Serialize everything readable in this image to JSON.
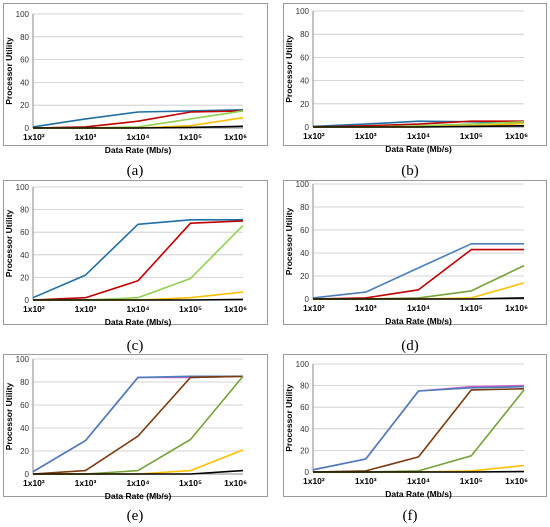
{
  "chart_data": [
    {
      "type": "line",
      "caption": "(a)",
      "xlabel": "Data Rate (Mb/s)",
      "ylabel": "Processor Utility",
      "x_tick_labels": [
        "1x10²",
        "1x10³",
        "1x10⁴",
        "1x10⁵",
        "1x10⁶"
      ],
      "y_ticks": [
        0,
        20,
        40,
        60,
        80,
        100
      ],
      "ylim": [
        0,
        100
      ],
      "xscale": "log",
      "grid": true,
      "series": [
        {
          "color": "#1f6fa5",
          "values": [
            1,
            8,
            14,
            15,
            16
          ]
        },
        {
          "color": "#c00000",
          "values": [
            0,
            1,
            6,
            14,
            15
          ]
        },
        {
          "color": "#92d050",
          "values": [
            0,
            0,
            1,
            8,
            15
          ]
        },
        {
          "color": "#ffc000",
          "values": [
            0,
            0,
            0,
            2,
            9
          ]
        },
        {
          "color": "#000000",
          "values": [
            0,
            0,
            0,
            0.5,
            1.5
          ]
        }
      ]
    },
    {
      "type": "line",
      "caption": "(b)",
      "xlabel": "Data Rate (Mb/s)",
      "ylabel": "Processor Utility",
      "x_tick_labels": [
        "1x10²",
        "1x10³",
        "1x10⁴",
        "1x10⁵",
        "1x10⁶"
      ],
      "y_ticks": [
        0,
        20,
        40,
        60,
        80,
        100
      ],
      "ylim": [
        0,
        100
      ],
      "xscale": "log",
      "grid": true,
      "series": [
        {
          "color": "#1f6fa5",
          "values": [
            0.5,
            2.5,
            5,
            4.5,
            3.5
          ]
        },
        {
          "color": "#c00000",
          "values": [
            0,
            1,
            2.5,
            5,
            5
          ]
        },
        {
          "color": "#92d050",
          "values": [
            0,
            0,
            1,
            2.5,
            4.5
          ]
        },
        {
          "color": "#ffc000",
          "values": [
            0,
            0,
            0,
            1,
            3
          ]
        },
        {
          "color": "#000000",
          "values": [
            0,
            0,
            0,
            0.5,
            1
          ]
        }
      ]
    },
    {
      "type": "line",
      "caption": "(c)",
      "xlabel": "Data Rate (Mb/s)",
      "ylabel": "Processor Utility",
      "x_tick_labels": [
        "1x10²",
        "1x10³",
        "1x10⁴",
        "1x10⁵",
        "1x10⁶"
      ],
      "y_ticks": [
        0,
        20,
        40,
        60,
        80,
        100
      ],
      "ylim": [
        0,
        100
      ],
      "xscale": "log",
      "grid": true,
      "series": [
        {
          "color": "#1f6fa5",
          "values": [
            2,
            22,
            67,
            71,
            71
          ]
        },
        {
          "color": "#c00000",
          "values": [
            0,
            2,
            17,
            68,
            70
          ]
        },
        {
          "color": "#92d050",
          "values": [
            0,
            0,
            2,
            19,
            66
          ]
        },
        {
          "color": "#ffc000",
          "values": [
            0,
            0,
            0,
            2,
            7
          ]
        },
        {
          "color": "#000000",
          "values": [
            0,
            0,
            0,
            0,
            0.5
          ]
        }
      ]
    },
    {
      "type": "line",
      "caption": "(d)",
      "xlabel": "Data Rate (Mb/s)",
      "ylabel": "Processor Utility",
      "x_tick_labels": [
        "1x10²",
        "1x10³",
        "1x10⁴",
        "1x10⁵",
        "1x10⁶"
      ],
      "y_ticks": [
        0,
        20,
        40,
        60,
        80,
        100
      ],
      "ylim": [
        0,
        100
      ],
      "xscale": "log",
      "grid": true,
      "series": [
        {
          "color": "#4a7ebb",
          "values": [
            1,
            6,
            27,
            48,
            48
          ]
        },
        {
          "color": "#c00000",
          "values": [
            0,
            1,
            8,
            43,
            43
          ]
        },
        {
          "color": "#77a33a",
          "values": [
            0,
            0,
            1,
            7,
            29
          ]
        },
        {
          "color": "#ffc000",
          "values": [
            0,
            0,
            0,
            1,
            14
          ]
        },
        {
          "color": "#000000",
          "values": [
            0,
            0,
            0,
            0,
            1
          ]
        }
      ]
    },
    {
      "type": "line",
      "caption": "(e)",
      "xlabel": "Data Rate (Mb/s)",
      "ylabel": "Processor Utility",
      "x_tick_labels": [
        "1x10²",
        "1x10³",
        "1x10⁴",
        "1x10⁵",
        "1x10⁶"
      ],
      "y_ticks": [
        0,
        20,
        40,
        60,
        80,
        100
      ],
      "ylim": [
        0,
        100
      ],
      "xscale": "log",
      "grid": true,
      "series": [
        {
          "color": "#d65ac8",
          "values": [
            2,
            29,
            84,
            84,
            85
          ]
        },
        {
          "color": "#4a7ebb",
          "values": [
            2,
            29,
            84,
            85,
            85
          ]
        },
        {
          "color": "#7b3a0f",
          "values": [
            0,
            3,
            33,
            84,
            85
          ]
        },
        {
          "color": "#77a33a",
          "values": [
            0,
            0,
            3,
            30,
            85
          ]
        },
        {
          "color": "#ffc000",
          "values": [
            0,
            0,
            0,
            3,
            21
          ]
        },
        {
          "color": "#000000",
          "values": [
            0,
            0,
            0,
            0,
            3
          ]
        }
      ]
    },
    {
      "type": "line",
      "caption": "(f)",
      "xlabel": "Data Rate (Mb/s)",
      "ylabel": "Processor Utility",
      "x_tick_labels": [
        "1x10²",
        "1x10³",
        "1x10⁴",
        "1x10⁵",
        "1x10⁶"
      ],
      "y_ticks": [
        0,
        20,
        40,
        60,
        80,
        100
      ],
      "ylim": [
        0,
        100
      ],
      "xscale": "log",
      "grid": true,
      "series": [
        {
          "color": "#d65ac8",
          "values": [
            2,
            12,
            75,
            79,
            80
          ]
        },
        {
          "color": "#4a7ebb",
          "values": [
            2,
            12,
            75,
            78,
            79
          ]
        },
        {
          "color": "#7b3a0f",
          "values": [
            0,
            1,
            14,
            76,
            77
          ]
        },
        {
          "color": "#77a33a",
          "values": [
            0,
            0,
            1,
            15,
            76
          ]
        },
        {
          "color": "#ffc000",
          "values": [
            0,
            0,
            0,
            1,
            6
          ]
        },
        {
          "color": "#000000",
          "values": [
            0,
            0,
            0,
            0,
            0.5
          ]
        }
      ]
    }
  ]
}
